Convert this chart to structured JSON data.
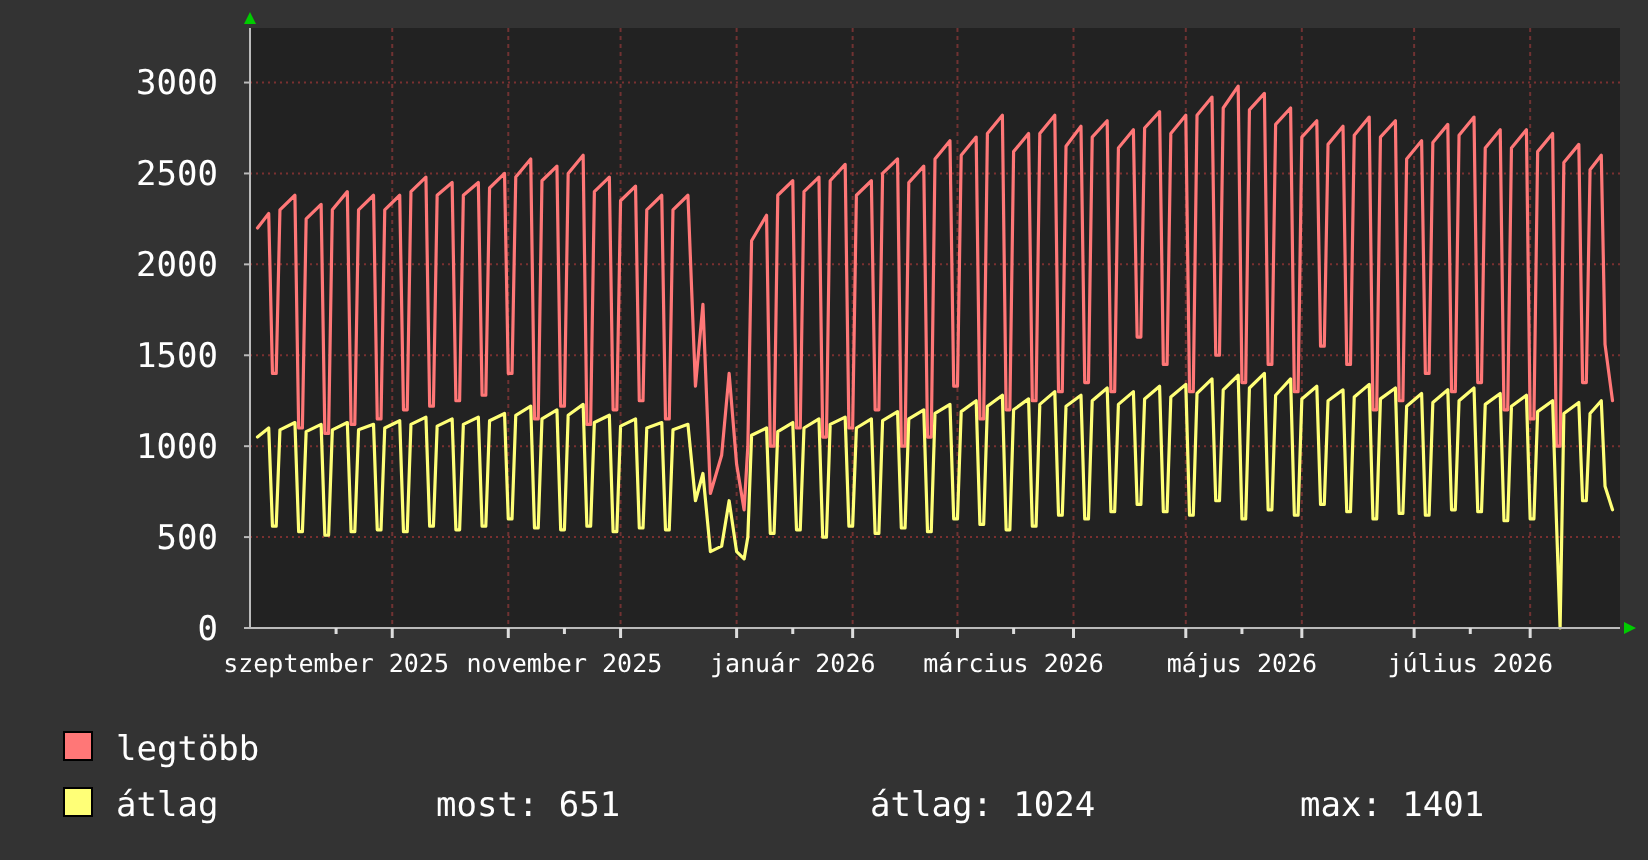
{
  "chart_data": {
    "type": "line",
    "x": [
      "2025-08-26",
      "2025-08-29",
      "2025-08-30",
      "2025-08-31",
      "2025-09-01",
      "2025-09-05",
      "2025-09-06",
      "2025-09-07",
      "2025-09-08",
      "2025-09-12",
      "2025-09-13",
      "2025-09-14",
      "2025-09-15",
      "2025-09-19",
      "2025-09-20",
      "2025-09-21",
      "2025-09-22",
      "2025-09-26",
      "2025-09-27",
      "2025-09-28",
      "2025-09-29",
      "2025-10-03",
      "2025-10-04",
      "2025-10-05",
      "2025-10-06",
      "2025-10-10",
      "2025-10-11",
      "2025-10-12",
      "2025-10-13",
      "2025-10-17",
      "2025-10-18",
      "2025-10-19",
      "2025-10-20",
      "2025-10-24",
      "2025-10-25",
      "2025-10-26",
      "2025-10-27",
      "2025-10-31",
      "2025-11-01",
      "2025-11-02",
      "2025-11-03",
      "2025-11-07",
      "2025-11-08",
      "2025-11-09",
      "2025-11-10",
      "2025-11-14",
      "2025-11-15",
      "2025-11-16",
      "2025-11-17",
      "2025-11-21",
      "2025-11-22",
      "2025-11-23",
      "2025-11-24",
      "2025-11-28",
      "2025-11-29",
      "2025-11-30",
      "2025-12-01",
      "2025-12-05",
      "2025-12-06",
      "2025-12-07",
      "2025-12-08",
      "2025-12-12",
      "2025-12-13",
      "2025-12-14",
      "2025-12-15",
      "2025-12-19",
      "2025-12-21",
      "2025-12-23",
      "2025-12-25",
      "2025-12-28",
      "2025-12-30",
      "2026-01-01",
      "2026-01-03",
      "2026-01-04",
      "2026-01-05",
      "2026-01-09",
      "2026-01-10",
      "2026-01-11",
      "2026-01-12",
      "2026-01-16",
      "2026-01-17",
      "2026-01-18",
      "2026-01-19",
      "2026-01-23",
      "2026-01-24",
      "2026-01-25",
      "2026-01-26",
      "2026-01-30",
      "2026-01-31",
      "2026-02-01",
      "2026-02-02",
      "2026-02-06",
      "2026-02-07",
      "2026-02-08",
      "2026-02-09",
      "2026-02-13",
      "2026-02-14",
      "2026-02-15",
      "2026-02-16",
      "2026-02-20",
      "2026-02-21",
      "2026-02-22",
      "2026-02-23",
      "2026-02-27",
      "2026-02-28",
      "2026-03-01",
      "2026-03-02",
      "2026-03-06",
      "2026-03-07",
      "2026-03-08",
      "2026-03-09",
      "2026-03-13",
      "2026-03-14",
      "2026-03-15",
      "2026-03-16",
      "2026-03-20",
      "2026-03-21",
      "2026-03-22",
      "2026-03-23",
      "2026-03-27",
      "2026-03-28",
      "2026-03-29",
      "2026-03-30",
      "2026-04-03",
      "2026-04-04",
      "2026-04-05",
      "2026-04-06",
      "2026-04-10",
      "2026-04-11",
      "2026-04-12",
      "2026-04-13",
      "2026-04-17",
      "2026-04-18",
      "2026-04-19",
      "2026-04-20",
      "2026-04-24",
      "2026-04-25",
      "2026-04-26",
      "2026-04-27",
      "2026-05-01",
      "2026-05-02",
      "2026-05-03",
      "2026-05-04",
      "2026-05-08",
      "2026-05-09",
      "2026-05-10",
      "2026-05-11",
      "2026-05-15",
      "2026-05-16",
      "2026-05-17",
      "2026-05-18",
      "2026-05-22",
      "2026-05-23",
      "2026-05-24",
      "2026-05-25",
      "2026-05-29",
      "2026-05-30",
      "2026-05-31",
      "2026-06-01",
      "2026-06-05",
      "2026-06-06",
      "2026-06-07",
      "2026-06-08",
      "2026-06-12",
      "2026-06-13",
      "2026-06-14",
      "2026-06-15",
      "2026-06-19",
      "2026-06-20",
      "2026-06-21",
      "2026-06-22",
      "2026-06-26",
      "2026-06-27",
      "2026-06-28",
      "2026-06-29",
      "2026-07-03",
      "2026-07-04",
      "2026-07-05",
      "2026-07-06",
      "2026-07-10",
      "2026-07-11",
      "2026-07-12",
      "2026-07-13",
      "2026-07-17",
      "2026-07-18",
      "2026-07-19",
      "2026-07-20",
      "2026-07-24",
      "2026-07-25",
      "2026-07-26",
      "2026-07-27",
      "2026-07-31",
      "2026-08-01",
      "2026-08-02",
      "2026-08-03",
      "2026-08-07",
      "2026-08-08",
      "2026-08-09",
      "2026-08-10",
      "2026-08-14",
      "2026-08-15",
      "2026-08-16",
      "2026-08-17",
      "2026-08-20",
      "2026-08-21",
      "2026-08-23"
    ],
    "series": [
      {
        "name": "legtöbb",
        "color": "#ff7777",
        "values": [
          2200,
          2280,
          1400,
          1400,
          2300,
          2380,
          1100,
          1100,
          2250,
          2330,
          1070,
          1070,
          2300,
          2400,
          1120,
          1120,
          2300,
          2380,
          1150,
          1150,
          2300,
          2380,
          1200,
          1200,
          2400,
          2480,
          1220,
          1220,
          2380,
          2450,
          1250,
          1250,
          2380,
          2450,
          1280,
          1280,
          2420,
          2500,
          1400,
          1400,
          2480,
          2580,
          1150,
          1150,
          2460,
          2540,
          1220,
          1220,
          2500,
          2600,
          1120,
          1120,
          2400,
          2480,
          1200,
          1200,
          2350,
          2430,
          1250,
          1250,
          2300,
          2380,
          1150,
          1150,
          2300,
          2380,
          1330,
          1780,
          740,
          950,
          1400,
          900,
          650,
          1000,
          2130,
          2270,
          1000,
          1000,
          2380,
          2460,
          1100,
          1100,
          2400,
          2480,
          1050,
          1050,
          2460,
          2550,
          1100,
          1100,
          2380,
          2460,
          1200,
          1200,
          2500,
          2580,
          1000,
          1000,
          2450,
          2540,
          1050,
          1050,
          2580,
          2680,
          1330,
          1330,
          2600,
          2700,
          1150,
          1150,
          2720,
          2820,
          1200,
          1200,
          2620,
          2720,
          1250,
          1250,
          2720,
          2820,
          1300,
          1300,
          2650,
          2760,
          1350,
          1350,
          2700,
          2790,
          1300,
          1300,
          2640,
          2740,
          1600,
          1600,
          2750,
          2840,
          1450,
          1450,
          2720,
          2820,
          1300,
          1300,
          2820,
          2920,
          1500,
          1500,
          2860,
          2980,
          1350,
          1350,
          2850,
          2940,
          1450,
          1450,
          2770,
          2860,
          1300,
          1300,
          2700,
          2790,
          1550,
          1550,
          2660,
          2760,
          1450,
          1450,
          2710,
          2810,
          1200,
          1200,
          2700,
          2790,
          1250,
          1250,
          2580,
          2680,
          1400,
          1400,
          2670,
          2770,
          1300,
          1300,
          2710,
          2810,
          1350,
          1350,
          2640,
          2740,
          1200,
          1200,
          2640,
          2740,
          1150,
          1150,
          2620,
          2720,
          1000,
          1000,
          2560,
          2660,
          1350,
          1350,
          2520,
          2600,
          1560,
          1250
        ]
      },
      {
        "name": "átlag",
        "color": "#ffff77",
        "values": [
          1050,
          1100,
          560,
          560,
          1090,
          1130,
          530,
          530,
          1080,
          1120,
          510,
          510,
          1090,
          1130,
          530,
          530,
          1090,
          1120,
          540,
          540,
          1100,
          1140,
          530,
          530,
          1120,
          1160,
          560,
          560,
          1110,
          1150,
          540,
          540,
          1120,
          1160,
          560,
          560,
          1140,
          1180,
          600,
          600,
          1170,
          1220,
          550,
          550,
          1150,
          1200,
          540,
          540,
          1170,
          1230,
          560,
          560,
          1130,
          1170,
          530,
          530,
          1110,
          1150,
          550,
          550,
          1100,
          1130,
          540,
          540,
          1090,
          1120,
          700,
          850,
          420,
          450,
          700,
          420,
          380,
          500,
          1060,
          1100,
          520,
          520,
          1080,
          1130,
          540,
          540,
          1100,
          1150,
          500,
          500,
          1120,
          1160,
          560,
          560,
          1100,
          1150,
          520,
          520,
          1140,
          1190,
          550,
          550,
          1150,
          1200,
          530,
          530,
          1180,
          1230,
          600,
          600,
          1190,
          1250,
          570,
          570,
          1220,
          1280,
          540,
          540,
          1200,
          1260,
          560,
          560,
          1230,
          1300,
          620,
          620,
          1220,
          1280,
          600,
          600,
          1250,
          1320,
          640,
          640,
          1230,
          1300,
          680,
          680,
          1260,
          1330,
          640,
          640,
          1270,
          1340,
          620,
          620,
          1290,
          1370,
          700,
          700,
          1310,
          1390,
          600,
          600,
          1320,
          1400,
          650,
          650,
          1280,
          1370,
          620,
          620,
          1260,
          1330,
          680,
          680,
          1250,
          1310,
          640,
          640,
          1270,
          1340,
          600,
          600,
          1260,
          1320,
          630,
          630,
          1220,
          1290,
          620,
          620,
          1240,
          1310,
          650,
          650,
          1250,
          1320,
          640,
          640,
          1230,
          1290,
          590,
          590,
          1220,
          1280,
          600,
          600,
          1190,
          1250,
          600,
          0,
          1180,
          1240,
          700,
          700,
          1180,
          1250,
          780,
          650
        ]
      }
    ],
    "xlim": [
      "2025-08-24",
      "2026-08-25"
    ],
    "xticks": [
      {
        "value": "2025-09-16",
        "label": "szeptember 2025"
      },
      {
        "value": "2025-10-01",
        "label": null
      },
      {
        "value": "2025-11-01",
        "label": null
      },
      {
        "value": "2025-11-16",
        "label": "november 2025"
      },
      {
        "value": "2025-12-01",
        "label": null
      },
      {
        "value": "2026-01-01",
        "label": null
      },
      {
        "value": "2026-01-16",
        "label": "január 2026"
      },
      {
        "value": "2026-02-01",
        "label": null
      },
      {
        "value": "2026-03-01",
        "label": null
      },
      {
        "value": "2026-03-16",
        "label": "március 2026"
      },
      {
        "value": "2026-04-01",
        "label": null
      },
      {
        "value": "2026-05-01",
        "label": null
      },
      {
        "value": "2026-05-16",
        "label": "május 2026"
      },
      {
        "value": "2026-06-01",
        "label": null
      },
      {
        "value": "2026-07-01",
        "label": null
      },
      {
        "value": "2026-07-16",
        "label": "július 2026"
      },
      {
        "value": "2026-08-01",
        "label": null
      }
    ],
    "ylim": [
      0,
      3300
    ],
    "yticks": [
      0,
      500,
      1000,
      1500,
      2000,
      2500,
      3000
    ],
    "grid": true,
    "legend": "bottom",
    "line_style": "solid",
    "marker": "none",
    "annotations": [
      "most: 651",
      "átlag: 1024",
      "max: 1401"
    ]
  }
}
